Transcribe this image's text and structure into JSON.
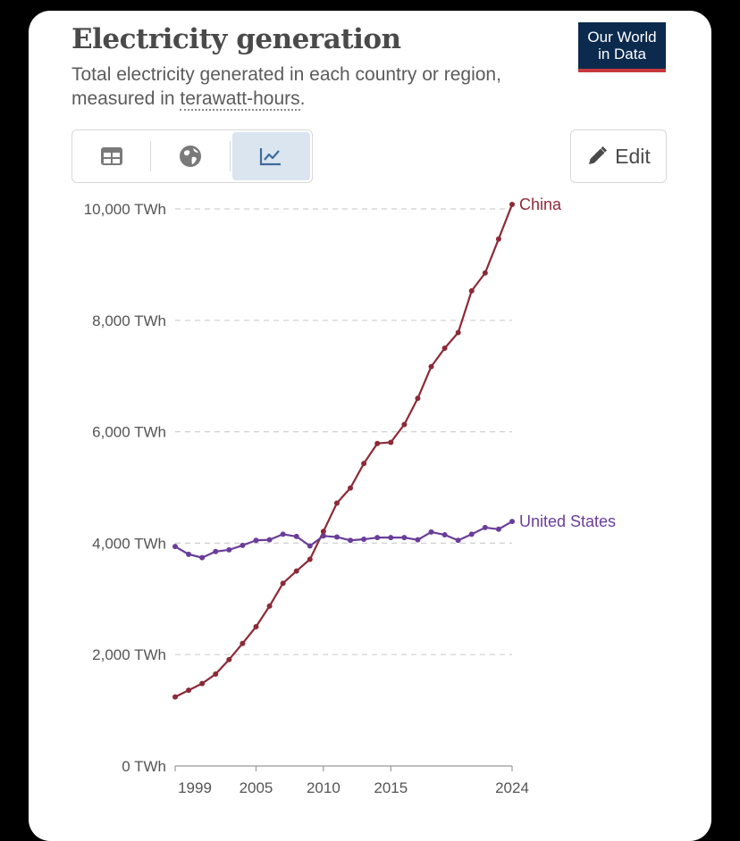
{
  "header": {
    "title": "Electricity generation",
    "subtitle_pre": "Total electricity generated in each country or region, measured in ",
    "subtitle_unit": "terawatt-hours",
    "subtitle_post": ".",
    "logo_line1": "Our World",
    "logo_line2": "in Data"
  },
  "controls": {
    "tabs": [
      {
        "name": "table",
        "icon": "table-icon"
      },
      {
        "name": "map",
        "icon": "globe-icon"
      },
      {
        "name": "chart",
        "icon": "line-chart-icon",
        "active": true
      }
    ],
    "edit_label": "Edit"
  },
  "chart_data": {
    "type": "line",
    "title": "Electricity generation",
    "ylabel": "TWh",
    "ylim": [
      0,
      10000
    ],
    "xlim": [
      1999,
      2024
    ],
    "y_ticks": [
      {
        "value": 0,
        "label": "0 TWh"
      },
      {
        "value": 2000,
        "label": "2,000 TWh"
      },
      {
        "value": 4000,
        "label": "4,000 TWh"
      },
      {
        "value": 6000,
        "label": "6,000 TWh"
      },
      {
        "value": 8000,
        "label": "8,000 TWh"
      },
      {
        "value": 10000,
        "label": "10,000 TWh"
      }
    ],
    "x_ticks": [
      {
        "value": 1999,
        "label": "1999"
      },
      {
        "value": 2005,
        "label": "2005"
      },
      {
        "value": 2010,
        "label": "2010"
      },
      {
        "value": 2015,
        "label": "2015"
      },
      {
        "value": 2024,
        "label": "2024"
      }
    ],
    "x": [
      1999,
      2000,
      2001,
      2002,
      2003,
      2004,
      2005,
      2006,
      2007,
      2008,
      2009,
      2010,
      2011,
      2012,
      2013,
      2014,
      2015,
      2016,
      2017,
      2018,
      2019,
      2020,
      2021,
      2022,
      2023,
      2024
    ],
    "series": [
      {
        "name": "China",
        "color": "#8c2a37",
        "values": [
          1240,
          1360,
          1480,
          1650,
          1910,
          2200,
          2500,
          2870,
          3280,
          3500,
          3710,
          4210,
          4720,
          4990,
          5430,
          5790,
          5810,
          6130,
          6600,
          7170,
          7500,
          7780,
          8530,
          8850,
          9460,
          10080
        ]
      },
      {
        "name": "United States",
        "color": "#6a3d9a",
        "values": [
          3940,
          3800,
          3740,
          3850,
          3880,
          3960,
          4050,
          4060,
          4160,
          4120,
          3950,
          4130,
          4110,
          4050,
          4070,
          4100,
          4100,
          4100,
          4060,
          4200,
          4150,
          4050,
          4160,
          4280,
          4250,
          4390
        ]
      }
    ]
  }
}
